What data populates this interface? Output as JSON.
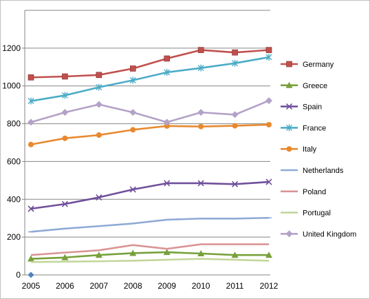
{
  "chart_data": {
    "type": "line",
    "title": "",
    "xlabel": "",
    "ylabel": "",
    "x": [
      "2005",
      "2006",
      "2007",
      "2008",
      "2009",
      "2010",
      "2011",
      "2012"
    ],
    "ylim": [
      0,
      1400
    ],
    "yticks": [
      0,
      200,
      400,
      600,
      800,
      1000,
      1200
    ],
    "grid": "horizontal",
    "legend": "right",
    "stray_point": {
      "x": "2005",
      "y": 0,
      "color": "#4f81bd",
      "marker": "diamond"
    },
    "series": [
      {
        "name": "Germany",
        "color": "#c0504d",
        "marker": "square",
        "values": [
          1045,
          1050,
          1058,
          1092,
          1145,
          1190,
          1177,
          1190
        ]
      },
      {
        "name": "Greece",
        "color": "#77a03a",
        "marker": "triangle",
        "values": [
          85,
          92,
          105,
          115,
          120,
          113,
          105,
          105
        ]
      },
      {
        "name": "Spain",
        "color": "#6f4f9b",
        "marker": "x",
        "values": [
          350,
          375,
          410,
          452,
          485,
          485,
          480,
          492
        ]
      },
      {
        "name": "France",
        "color": "#4bacc6",
        "marker": "star",
        "values": [
          920,
          950,
          993,
          1030,
          1072,
          1095,
          1120,
          1152
        ]
      },
      {
        "name": "Italy",
        "color": "#e8892e",
        "marker": "circle",
        "values": [
          690,
          723,
          740,
          768,
          788,
          785,
          789,
          795
        ]
      },
      {
        "name": "Netherlands",
        "color": "#8faad4",
        "marker": "dash",
        "values": [
          228,
          245,
          258,
          272,
          292,
          298,
          298,
          302
        ]
      },
      {
        "name": "Poland",
        "color": "#d99594",
        "marker": "none",
        "values": [
          105,
          118,
          130,
          158,
          138,
          162,
          162,
          162
        ]
      },
      {
        "name": "Portugal",
        "color": "#c3d69b",
        "marker": "none",
        "values": [
          68,
          70,
          72,
          75,
          80,
          85,
          80,
          75
        ]
      },
      {
        "name": "United Kingdom",
        "color": "#b3a2c7",
        "marker": "diamond",
        "values": [
          808,
          860,
          902,
          860,
          808,
          860,
          848,
          922
        ]
      }
    ]
  }
}
